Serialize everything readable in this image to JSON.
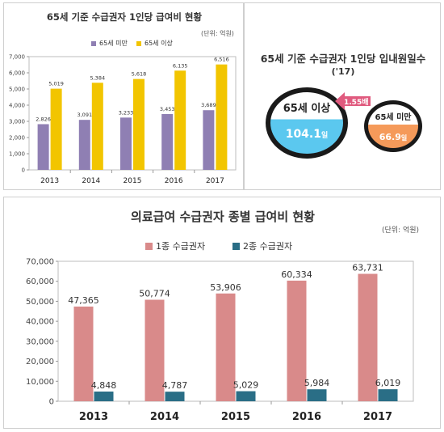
{
  "chart_data": [
    {
      "type": "bar",
      "title": "65세 기준 수급권자 1인당 급여비 현황",
      "unit": "(단위: 억원)",
      "categories": [
        "2013",
        "2014",
        "2015",
        "2016",
        "2017"
      ],
      "series": [
        {
          "name": "65세 미만",
          "values": [
            2826,
            3091,
            3233,
            3453,
            3689
          ],
          "color": "#8f7fb3"
        },
        {
          "name": "65세 이상",
          "values": [
            5019,
            5384,
            5618,
            6135,
            6516
          ],
          "color": "#f2c500"
        }
      ],
      "y_ticks": [
        "0",
        "1,000",
        "2,000",
        "3,000",
        "4,000",
        "5,000",
        "6,000",
        "7,000"
      ],
      "ylim": [
        0,
        7000
      ],
      "grid": false,
      "legend": "top-center"
    },
    {
      "type": "other",
      "title": "65세 기준 수급권자 1인당 입내원일수",
      "subtitle": "('17)",
      "circles": [
        {
          "label": "65세 이상",
          "value": "104.1",
          "unit": "일",
          "color": "#5bc8ef"
        },
        {
          "label": "65세 미만",
          "value": "66.9",
          "unit": "일",
          "color": "#f59a5a"
        }
      ],
      "ratio_label": "1.55배"
    },
    {
      "type": "bar",
      "title": "의료급여 수급권자 종별 급여비 현황",
      "unit": "(단위: 억원)",
      "categories": [
        "2013",
        "2014",
        "2015",
        "2016",
        "2017"
      ],
      "series": [
        {
          "name": "1종 수급권자",
          "values": [
            47365,
            50774,
            53906,
            60334,
            63731
          ],
          "color": "#d98a8a"
        },
        {
          "name": "2종 수급권자",
          "values": [
            4848,
            4787,
            5029,
            5984,
            6019
          ],
          "color": "#2a6e86"
        }
      ],
      "y_ticks": [
        "0",
        "10,000",
        "20,000",
        "30,000",
        "40,000",
        "50,000",
        "60,000",
        "70,000"
      ],
      "ylim": [
        0,
        70000
      ],
      "grid": false,
      "legend": "top-left"
    }
  ]
}
